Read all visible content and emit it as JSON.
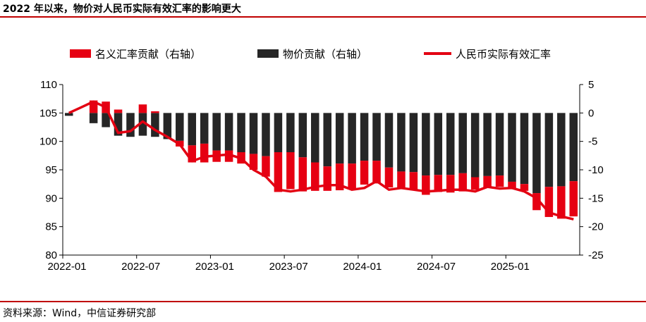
{
  "header": {
    "title": "2022 年以来，物价对人民币实际有效汇率的影响更大"
  },
  "footer": {
    "source": "资料来源：Wind，中信证券研究部"
  },
  "chart_data": {
    "type": "bar",
    "title": "2022 年以来，物价对人民币实际有效汇率的影响更大",
    "legend": [
      "名义汇率贡献（右轴）",
      "物价贡献（右轴）",
      "人民币实际有效汇率"
    ],
    "legend_position": "top",
    "colors": {
      "nominal": "#e60012",
      "price": "#262626",
      "reer": "#e30012"
    },
    "x_tick_labels": [
      "2022-01",
      "2022-07",
      "2023-01",
      "2023-07",
      "2024-01",
      "2024-07",
      "2025-01"
    ],
    "x": [
      "2022-01",
      "2022-02",
      "2022-03",
      "2022-04",
      "2022-05",
      "2022-06",
      "2022-07",
      "2022-08",
      "2022-09",
      "2022-10",
      "2022-11",
      "2022-12",
      "2023-01",
      "2023-02",
      "2023-03",
      "2023-04",
      "2023-05",
      "2023-06",
      "2023-07",
      "2023-08",
      "2023-09",
      "2023-10",
      "2023-11",
      "2023-12",
      "2024-01",
      "2024-02",
      "2024-03",
      "2024-04",
      "2024-05",
      "2024-06",
      "2024-07",
      "2024-08",
      "2024-09",
      "2024-10",
      "2024-11",
      "2024-12",
      "2025-01",
      "2025-02",
      "2025-03",
      "2025-04",
      "2025-05",
      "2025-06"
    ],
    "y_left": {
      "ticks": [
        80,
        85,
        90,
        95,
        100,
        105,
        110
      ],
      "ylim": [
        80,
        110
      ]
    },
    "y_right": {
      "ticks": [
        -25,
        -20,
        -15,
        -10,
        -5,
        0,
        5
      ],
      "ylim": [
        -25,
        5
      ]
    },
    "series": [
      {
        "name": "名义汇率贡献（右轴）",
        "type": "bar",
        "axis": "right",
        "values": [
          0.0,
          0.0,
          2.2,
          2.0,
          0.6,
          0.0,
          1.5,
          0.3,
          0.0,
          -1.0,
          -3.0,
          -3.3,
          -2.0,
          -2.0,
          -2.0,
          -2.8,
          -3.6,
          -7.0,
          -6.5,
          -6.0,
          -5.0,
          -4.3,
          -4.7,
          -4.5,
          -4.2,
          -4.0,
          -3.5,
          -3.0,
          -3.2,
          -3.4,
          -3.0,
          -3.1,
          -3.2,
          -2.2,
          -2.0,
          -2.0,
          -1.3,
          -1.2,
          -3.0,
          -5.3,
          -5.7,
          -6.2
        ]
      },
      {
        "name": "物价贡献（右轴）",
        "type": "bar",
        "axis": "right",
        "values": [
          -0.5,
          0.0,
          -1.8,
          -2.5,
          -4.0,
          -4.2,
          -4.0,
          -4.2,
          -4.6,
          -4.9,
          -5.7,
          -5.4,
          -6.6,
          -6.6,
          -6.9,
          -7.2,
          -7.6,
          -6.9,
          -6.9,
          -7.8,
          -8.7,
          -9.4,
          -8.9,
          -8.9,
          -8.4,
          -8.4,
          -9.6,
          -10.3,
          -10.4,
          -11.0,
          -10.9,
          -10.9,
          -10.6,
          -11.3,
          -11.1,
          -11.0,
          -12.1,
          -12.5,
          -14.1,
          -13.0,
          -12.9,
          -12.0
        ]
      },
      {
        "name": "人民币实际有效汇率",
        "type": "line",
        "axis": "left",
        "values": [
          105.0,
          106.0,
          107.0,
          106.0,
          101.5,
          101.8,
          103.5,
          102.0,
          100.8,
          99.5,
          96.5,
          97.3,
          97.5,
          97.7,
          97.0,
          95.0,
          93.8,
          91.5,
          91.2,
          91.5,
          92.0,
          92.3,
          92.3,
          91.5,
          91.8,
          93.0,
          91.5,
          91.8,
          91.5,
          91.2,
          91.3,
          91.5,
          91.5,
          91.2,
          92.0,
          91.7,
          91.8,
          91.2,
          90.0,
          87.5,
          86.8,
          86.3
        ]
      }
    ]
  }
}
